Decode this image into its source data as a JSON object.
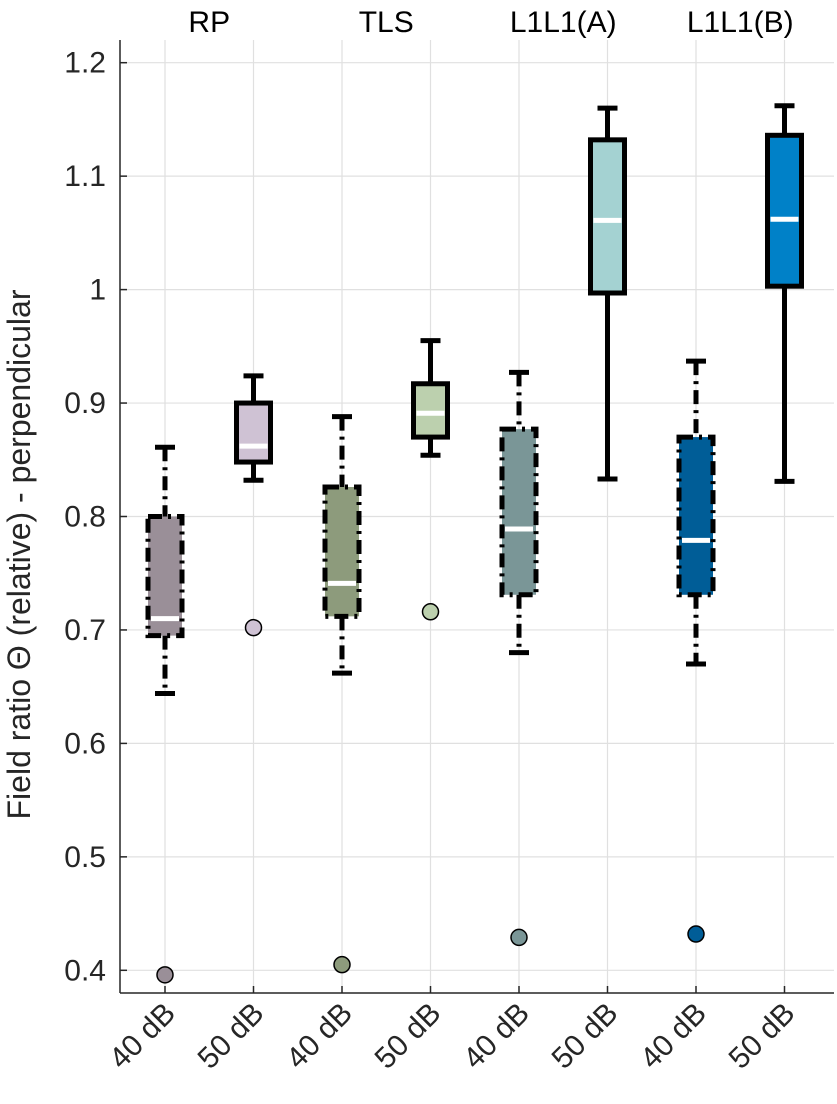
{
  "chart_data": {
    "type": "boxplot",
    "title": "",
    "xlabel": "",
    "ylabel": "Field ratio Θ (relative) - perpendicular",
    "ylim": [
      0.38,
      1.22
    ],
    "yticks": [
      0.4,
      0.5,
      0.6,
      0.7,
      0.8,
      0.9,
      1,
      1.1,
      1.2
    ],
    "ytick_labels": [
      "0.4",
      "0.5",
      "0.6",
      "0.7",
      "0.8",
      "0.9",
      "1",
      "1.1",
      "1.2"
    ],
    "grid": true,
    "groups": [
      "RP",
      "TLS",
      "L1L1(A)",
      "L1L1(B)"
    ],
    "categories": [
      "40 dB",
      "50 dB",
      "40 dB",
      "50 dB",
      "40 dB",
      "50 dB",
      "40 dB",
      "50 dB"
    ],
    "boxes": [
      {
        "group": "RP",
        "level": "40 dB",
        "whisker_low": 0.644,
        "q1": 0.695,
        "median": 0.71,
        "q3": 0.8,
        "whisker_high": 0.861,
        "outliers": [
          0.396
        ],
        "color": "#9a8f98",
        "line_style": "dash-dot"
      },
      {
        "group": "RP",
        "level": "50 dB",
        "whisker_low": 0.832,
        "q1": 0.848,
        "median": 0.862,
        "q3": 0.9,
        "whisker_high": 0.924,
        "outliers": [
          0.702
        ],
        "color": "#cfc2d4",
        "line_style": "solid"
      },
      {
        "group": "TLS",
        "level": "40 dB",
        "whisker_low": 0.662,
        "q1": 0.712,
        "median": 0.741,
        "q3": 0.826,
        "whisker_high": 0.888,
        "outliers": [
          0.405
        ],
        "color": "#8d9b7c",
        "line_style": "dash-dot"
      },
      {
        "group": "TLS",
        "level": "50 dB",
        "whisker_low": 0.854,
        "q1": 0.87,
        "median": 0.891,
        "q3": 0.917,
        "whisker_high": 0.955,
        "outliers": [
          0.716
        ],
        "color": "#bcd0ae",
        "line_style": "solid"
      },
      {
        "group": "L1L1(A)",
        "level": "40 dB",
        "whisker_low": 0.68,
        "q1": 0.731,
        "median": 0.789,
        "q3": 0.877,
        "whisker_high": 0.927,
        "outliers": [
          0.429
        ],
        "color": "#7a9697",
        "line_style": "dash-dot"
      },
      {
        "group": "L1L1(A)",
        "level": "50 dB",
        "whisker_low": 0.833,
        "q1": 0.997,
        "median": 1.061,
        "q3": 1.132,
        "whisker_high": 1.16,
        "outliers": [],
        "color": "#a4d2d2",
        "line_style": "solid"
      },
      {
        "group": "L1L1(B)",
        "level": "40 dB",
        "whisker_low": 0.67,
        "q1": 0.731,
        "median": 0.779,
        "q3": 0.87,
        "whisker_high": 0.937,
        "outliers": [
          0.432
        ],
        "color": "#005d97",
        "line_style": "dash-dot"
      },
      {
        "group": "L1L1(B)",
        "level": "50 dB",
        "whisker_low": 0.831,
        "q1": 1.003,
        "median": 1.062,
        "q3": 1.136,
        "whisker_high": 1.162,
        "outliers": [],
        "color": "#0081c8",
        "line_style": "solid"
      }
    ]
  }
}
